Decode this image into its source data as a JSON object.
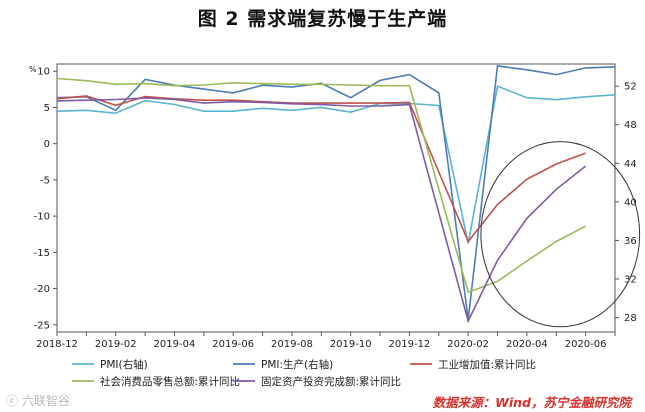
{
  "title": "图 2    需求端复苏慢于生产端",
  "source": "数据来源：Wind，苏宁金融研究院",
  "watermark": "ⓒ 六联智谷",
  "chart_data": {
    "type": "line",
    "x": [
      "2018-12",
      "2019-01",
      "2019-02",
      "2019-03",
      "2019-04",
      "2019-05",
      "2019-06",
      "2019-07",
      "2019-08",
      "2019-09",
      "2019-10",
      "2019-11",
      "2019-12",
      "2020-01",
      "2020-02",
      "2020-03",
      "2020-04",
      "2020-05",
      "2020-06",
      "2020-07"
    ],
    "x_tick_labels": [
      "2018-12",
      "2019-02",
      "2019-04",
      "2019-06",
      "2019-08",
      "2019-10",
      "2019-12",
      "2020-02",
      "2020-04",
      "2020-06"
    ],
    "y_left": {
      "unit": "%",
      "ylim": [
        -26,
        11
      ],
      "ticks": [
        10,
        5,
        0,
        -5,
        -10,
        -15,
        -20,
        -25
      ]
    },
    "y_right": {
      "ylim": [
        26.5,
        54.3
      ],
      "ticks": [
        52,
        48,
        44,
        40,
        36,
        32,
        28
      ]
    },
    "grid": false,
    "legend_position": "bottom",
    "series": [
      {
        "name": "PMI(右轴)",
        "axis": "right",
        "color": "#5ab4cf",
        "values": [
          49.4,
          49.5,
          49.2,
          50.5,
          50.1,
          49.4,
          49.4,
          49.7,
          49.5,
          49.8,
          49.3,
          50.2,
          50.2,
          50.0,
          35.7,
          52.0,
          50.8,
          50.6,
          50.9,
          51.1
        ]
      },
      {
        "name": "PMI:生产(右轴)",
        "axis": "right",
        "color": "#4d7cb6",
        "values": [
          50.8,
          50.9,
          49.5,
          52.7,
          52.1,
          51.7,
          51.3,
          52.1,
          51.9,
          52.3,
          50.8,
          52.6,
          53.2,
          51.3,
          27.8,
          54.1,
          53.7,
          53.2,
          53.9,
          54.0
        ]
      },
      {
        "name": "工业增加值:累计同比",
        "axis": "left",
        "color": "#c1504c",
        "values": [
          6.2,
          6.6,
          5.3,
          6.5,
          6.2,
          6.0,
          6.0,
          5.8,
          5.6,
          5.6,
          5.6,
          5.6,
          5.7,
          null,
          -13.5,
          -8.4,
          -4.9,
          -2.8,
          -1.3,
          null
        ]
      },
      {
        "name": "社会消费品零售总额:累计同比",
        "axis": "left",
        "color": "#9bbb59",
        "values": [
          9.0,
          8.7,
          8.2,
          8.3,
          8.0,
          8.1,
          8.4,
          8.3,
          8.2,
          8.2,
          8.1,
          8.0,
          8.0,
          null,
          -20.5,
          -19.0,
          -16.2,
          -13.5,
          -11.4,
          null
        ]
      },
      {
        "name": "固定资产投资完成额:累计同比",
        "axis": "left",
        "color": "#7f5ba6",
        "values": [
          5.9,
          6.0,
          6.1,
          6.3,
          6.1,
          5.6,
          5.8,
          5.7,
          5.5,
          5.4,
          5.2,
          5.2,
          5.4,
          null,
          -24.5,
          -16.1,
          -10.3,
          -6.3,
          -3.1,
          null
        ]
      }
    ],
    "annotations": [
      {
        "type": "ellipse",
        "note": "highlight 2020-04 to 2020-06 recovery"
      }
    ]
  }
}
